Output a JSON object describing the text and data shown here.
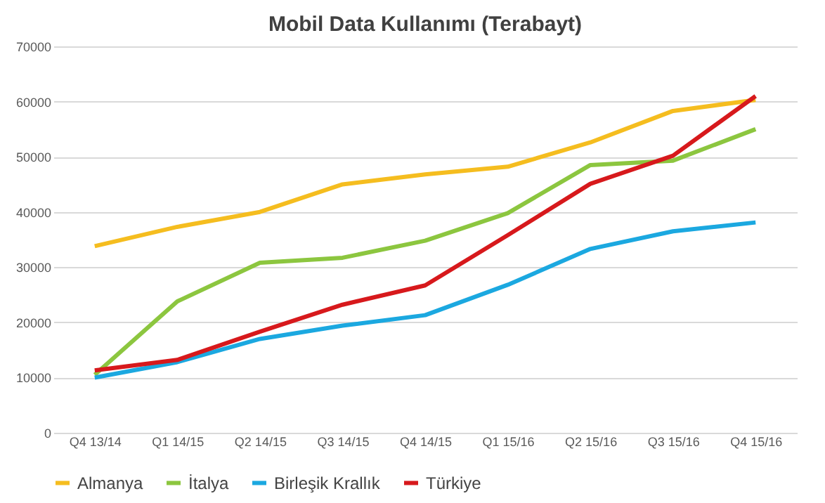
{
  "chart_data": {
    "type": "line",
    "title": "Mobil Data Kullanımı (Terabayt)",
    "categories": [
      "Q4 13/14",
      "Q1 14/15",
      "Q2 14/15",
      "Q3 14/15",
      "Q4 14/15",
      "Q1 15/16",
      "Q2 15/16",
      "Q3 15/16",
      "Q4 15/16"
    ],
    "series": [
      {
        "name": "Almanya",
        "color": "#f5bd1f",
        "values": [
          33800,
          37300,
          40000,
          45000,
          46800,
          48200,
          52600,
          58300,
          60300
        ]
      },
      {
        "name": "İtalya",
        "color": "#8cc63f",
        "values": [
          10500,
          23800,
          30800,
          31700,
          34800,
          39800,
          48500,
          49300,
          55000
        ]
      },
      {
        "name": "Birleşik Krallık",
        "color": "#1ba8e0",
        "values": [
          10000,
          12800,
          17000,
          19400,
          21300,
          26800,
          33300,
          36500,
          38100
        ]
      },
      {
        "name": "Türkiye",
        "color": "#d7191c",
        "values": [
          11300,
          13200,
          18300,
          23200,
          26700,
          35800,
          45100,
          50200,
          61000
        ]
      }
    ],
    "ylim": [
      0,
      70000
    ],
    "yticks": [
      0,
      10000,
      20000,
      30000,
      40000,
      50000,
      60000,
      70000
    ],
    "grid": "y",
    "legend": "bottom",
    "marker": "none",
    "line_style": "solid"
  }
}
